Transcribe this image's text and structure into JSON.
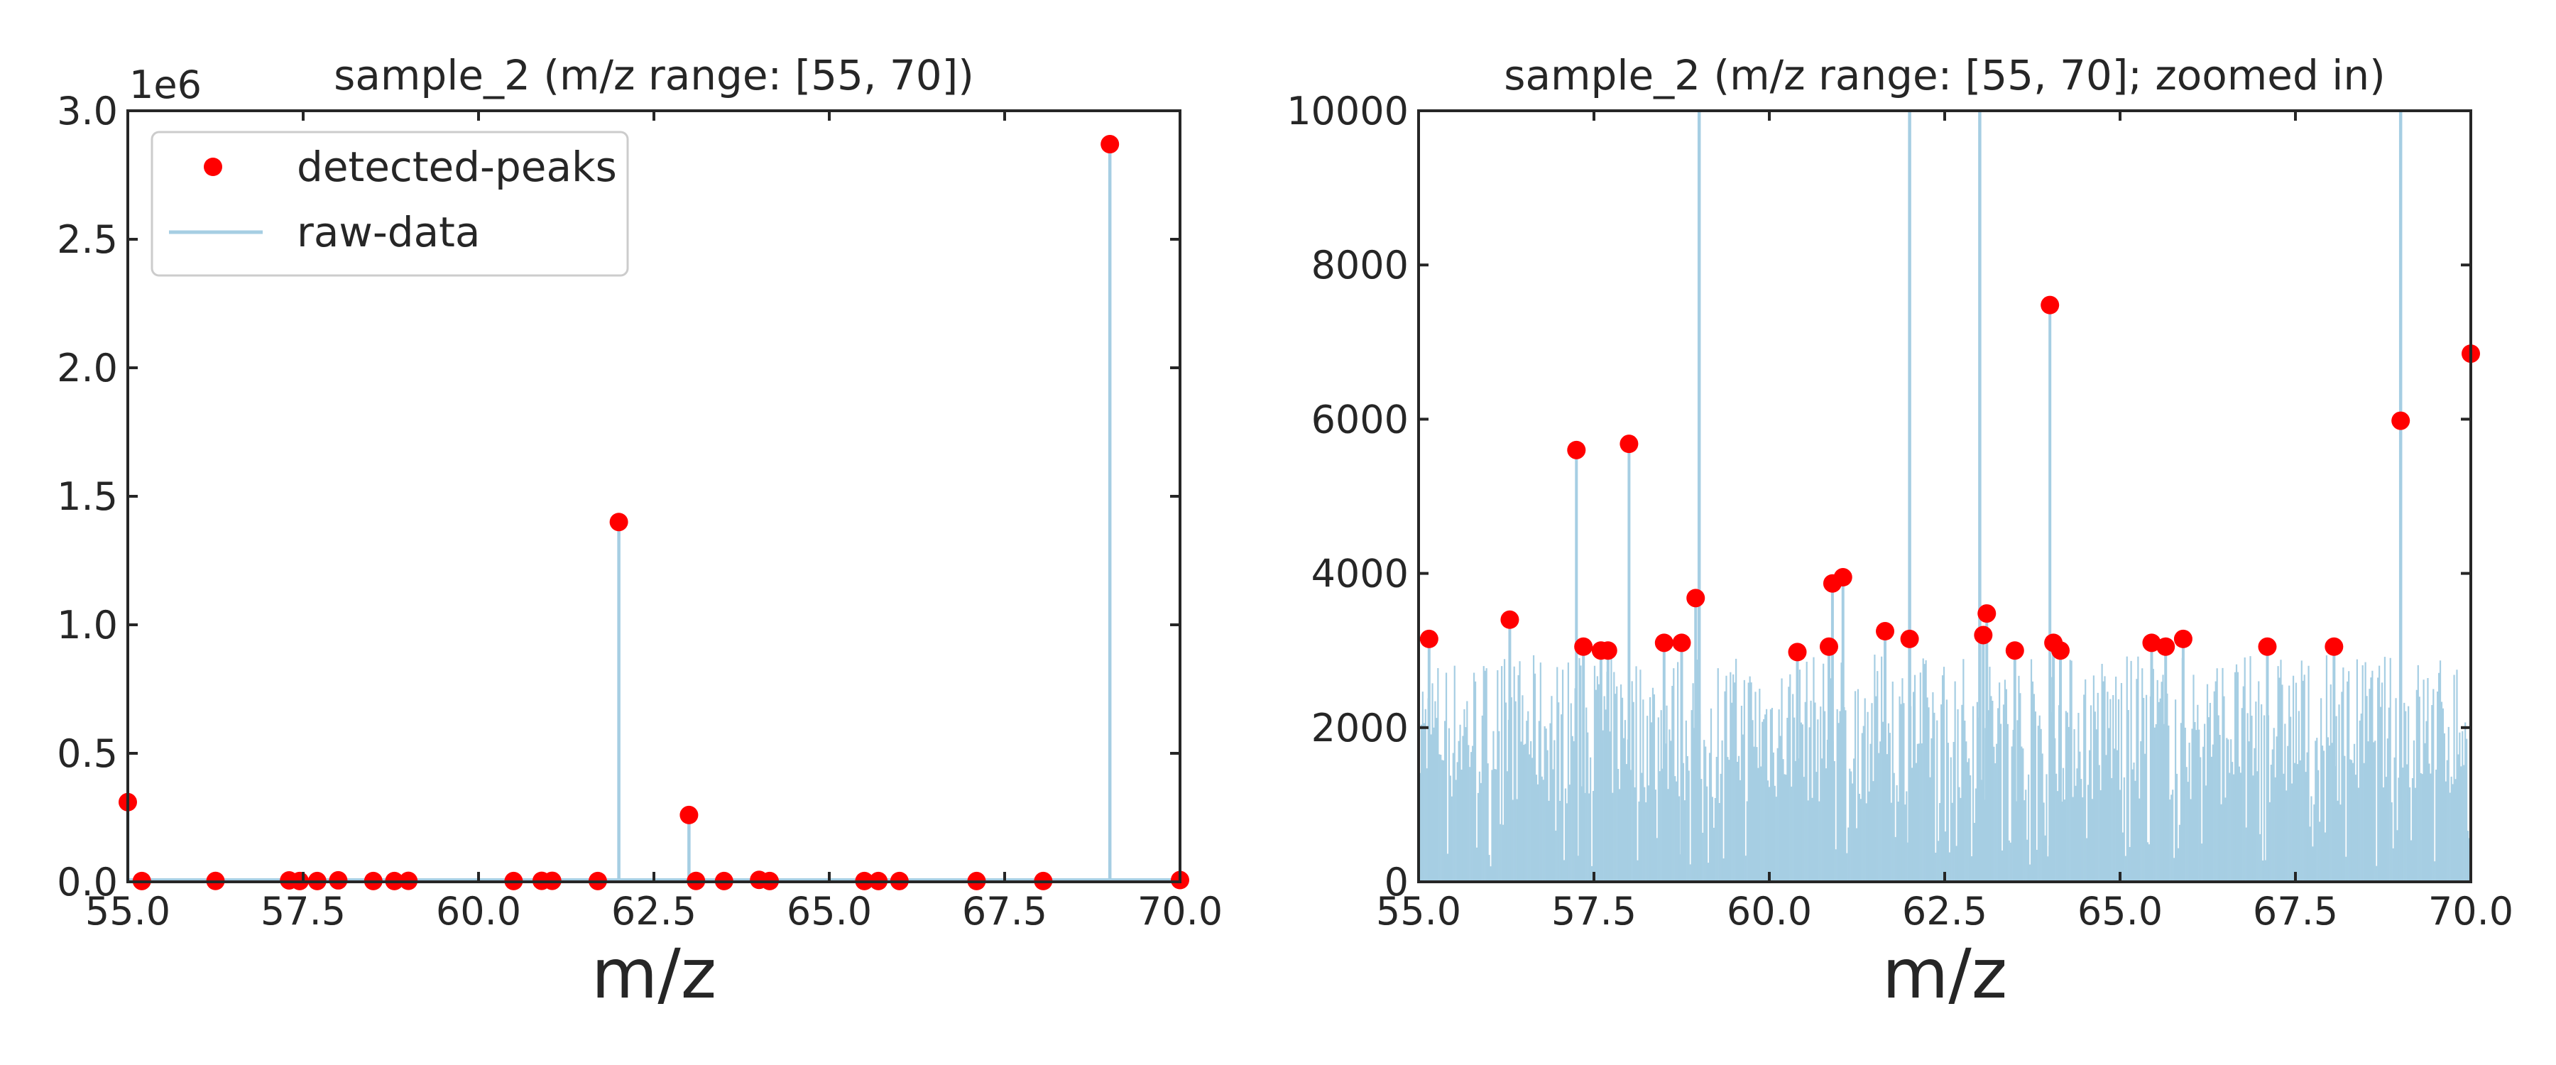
{
  "colors": {
    "peak": "#ff0000",
    "raw": "#a6cee3",
    "axis": "#262626",
    "background": "#ffffff"
  },
  "chart_data": [
    {
      "type": "line",
      "title": "sample_2 (m/z range: [55, 70])",
      "xlabel": "m/z",
      "ylabel": "",
      "offset_text": "1e6",
      "xlim": [
        55,
        70
      ],
      "ylim": [
        0,
        3000000
      ],
      "x_ticks": [
        "55.0",
        "57.5",
        "60.0",
        "62.5",
        "65.0",
        "67.5",
        "70.0"
      ],
      "y_ticks": [
        "0.0",
        "0.5",
        "1.0",
        "1.5",
        "2.0",
        "2.5",
        "3.0"
      ],
      "grid": false,
      "legend": {
        "position": "top-left",
        "entries": [
          "detected-peaks",
          "raw-data"
        ]
      },
      "series": [
        {
          "name": "detected-peaks",
          "kind": "scatter",
          "x": [
            55.0,
            55.2,
            56.25,
            57.3,
            57.45,
            57.7,
            58.0,
            58.5,
            58.8,
            59.0,
            60.5,
            60.9,
            61.05,
            61.7,
            62.0,
            63.0,
            63.1,
            63.5,
            64.0,
            64.15,
            65.5,
            65.7,
            66.0,
            67.1,
            68.05,
            69.0,
            70.0
          ],
          "y": [
            310000,
            3200,
            3400,
            5600,
            3100,
            3050,
            5700,
            3100,
            3100,
            3700,
            3000,
            3900,
            3950,
            3250,
            1400000,
            260000,
            3500,
            3000,
            7500,
            3000,
            3100,
            3050,
            3150,
            3050,
            3050,
            2870000,
            6800
          ]
        },
        {
          "name": "raw-data",
          "kind": "stem",
          "x": [
            55.0,
            62.0,
            63.0,
            69.0
          ],
          "y": [
            310000,
            1400000,
            260000,
            2870000
          ]
        }
      ]
    },
    {
      "type": "line",
      "title": "sample_2 (m/z range: [55, 70]; zoomed in)",
      "xlabel": "m/z",
      "ylabel": "",
      "xlim": [
        55,
        70
      ],
      "ylim": [
        0,
        10000
      ],
      "x_ticks": [
        "55.0",
        "57.5",
        "60.0",
        "62.5",
        "65.0",
        "67.5",
        "70.0"
      ],
      "y_ticks": [
        "0",
        "2000",
        "4000",
        "6000",
        "8000",
        "10000"
      ],
      "grid": false,
      "series": [
        {
          "name": "detected-peaks",
          "kind": "scatter",
          "x": [
            55.15,
            56.3,
            57.25,
            57.35,
            57.6,
            57.7,
            58.0,
            58.5,
            58.75,
            58.95,
            60.4,
            60.85,
            60.9,
            61.05,
            61.65,
            62.0,
            63.05,
            63.1,
            63.5,
            64.0,
            64.05,
            64.15,
            65.45,
            65.65,
            65.9,
            67.1,
            68.05,
            69.0,
            70.0
          ],
          "y": [
            3150,
            3400,
            5600,
            3050,
            3000,
            3000,
            5680,
            3100,
            3100,
            3680,
            2980,
            3050,
            3870,
            3950,
            3250,
            3150,
            3200,
            3480,
            3000,
            7480,
            3100,
            3000,
            3100,
            3050,
            3150,
            3050,
            3050,
            5980,
            6850
          ]
        },
        {
          "name": "raw-data",
          "kind": "stem",
          "x": [
            59.0,
            62.0,
            63.0,
            69.0
          ],
          "y": [
            10000,
            10000,
            10000,
            10000
          ]
        }
      ]
    }
  ]
}
